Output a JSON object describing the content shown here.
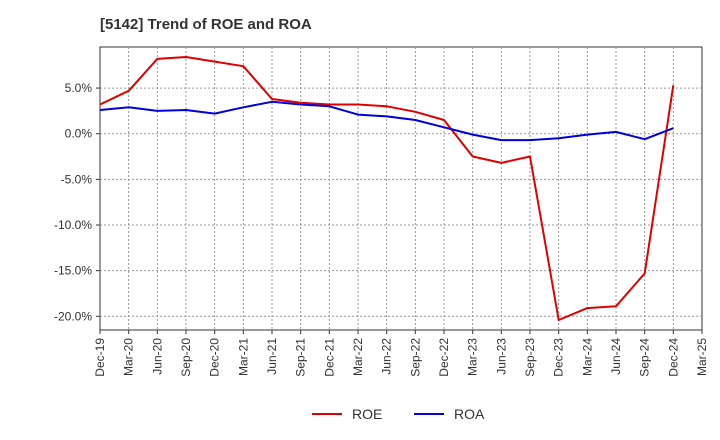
{
  "chart_data": {
    "type": "line",
    "title": "[5142]  Trend of ROE and ROA",
    "xlabel": "",
    "ylabel": "",
    "x": [
      "Dec-19",
      "Mar-20",
      "Jun-20",
      "Sep-20",
      "Dec-20",
      "Mar-21",
      "Jun-21",
      "Sep-21",
      "Dec-21",
      "Mar-22",
      "Jun-22",
      "Sep-22",
      "Dec-22",
      "Mar-23",
      "Jun-23",
      "Sep-23",
      "Dec-23",
      "Mar-24",
      "Jun-24",
      "Sep-24",
      "Dec-24",
      "Mar-25"
    ],
    "ylim": [
      -21.5,
      9.5
    ],
    "yticks": [
      5,
      0,
      -5,
      -10,
      -15,
      -20
    ],
    "ytick_labels": [
      "5.0%",
      "0.0%",
      "-5.0%",
      "-10.0%",
      "-15.0%",
      "-20.0%"
    ],
    "grid": true,
    "legend_position": "bottom",
    "series": [
      {
        "name": "ROE",
        "color": "#e00000",
        "values": [
          3.2,
          4.7,
          8.2,
          8.4,
          7.9,
          7.4,
          3.8,
          3.4,
          3.2,
          3.2,
          3.0,
          2.4,
          1.5,
          -2.5,
          -3.2,
          -2.5,
          -20.4,
          -19.1,
          -18.9,
          -15.3,
          5.3,
          null
        ]
      },
      {
        "name": "ROA",
        "color": "#0000e0",
        "values": [
          2.6,
          2.9,
          2.5,
          2.6,
          2.2,
          2.9,
          3.5,
          3.2,
          3.0,
          2.1,
          1.9,
          1.5,
          0.7,
          -0.1,
          -0.7,
          -0.7,
          -0.5,
          -0.1,
          0.2,
          -0.6,
          0.6,
          null
        ]
      }
    ]
  }
}
